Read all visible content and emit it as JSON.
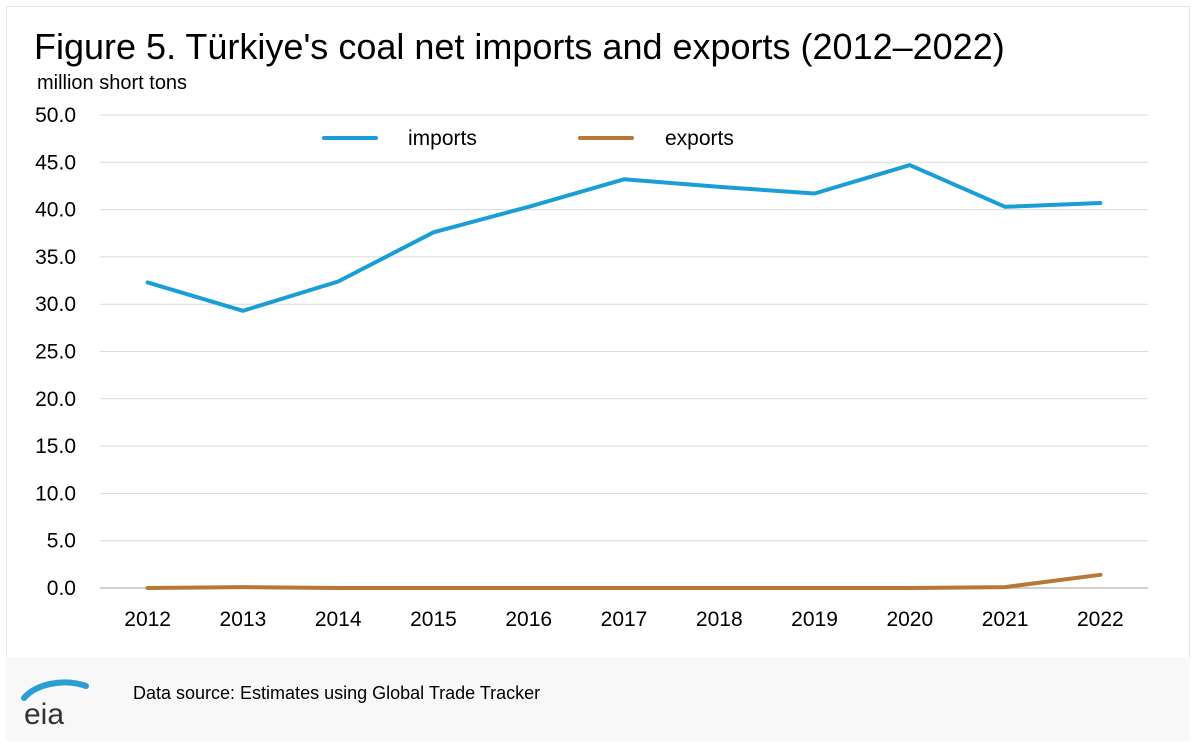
{
  "title": "Figure 5. Türkiye's coal net imports and exports (2012–2022)",
  "subtitle": "million short tons",
  "source": "Data source: Estimates using Global Trade Tracker",
  "logo_text": "eia",
  "colors": {
    "imports": "#1a9ed6",
    "exports": "#b8783a",
    "grid": "#d9d9d9",
    "axis": "#bfbfbf",
    "logo": "#2a9fd6",
    "logo_text": "#333333"
  },
  "chart_data": {
    "type": "line",
    "title": "Figure 5. Türkiye's coal net imports and exports (2012–2022)",
    "ylabel": "million short tons",
    "xlabel": "",
    "ylim": [
      0,
      50
    ],
    "yticks": [
      "0.0",
      "5.0",
      "10.0",
      "15.0",
      "20.0",
      "25.0",
      "30.0",
      "35.0",
      "40.0",
      "45.0",
      "50.0"
    ],
    "grid": true,
    "legend_position": "top-center",
    "categories": [
      "2012",
      "2013",
      "2014",
      "2015",
      "2016",
      "2017",
      "2018",
      "2019",
      "2020",
      "2021",
      "2022"
    ],
    "series": [
      {
        "name": "imports",
        "values": [
          32.3,
          29.3,
          32.4,
          37.6,
          40.3,
          43.2,
          42.4,
          41.7,
          44.7,
          40.3,
          40.7
        ]
      },
      {
        "name": "exports",
        "values": [
          0.0,
          0.1,
          0.0,
          0.0,
          0.0,
          0.0,
          0.0,
          0.0,
          0.0,
          0.1,
          1.4
        ]
      }
    ]
  }
}
